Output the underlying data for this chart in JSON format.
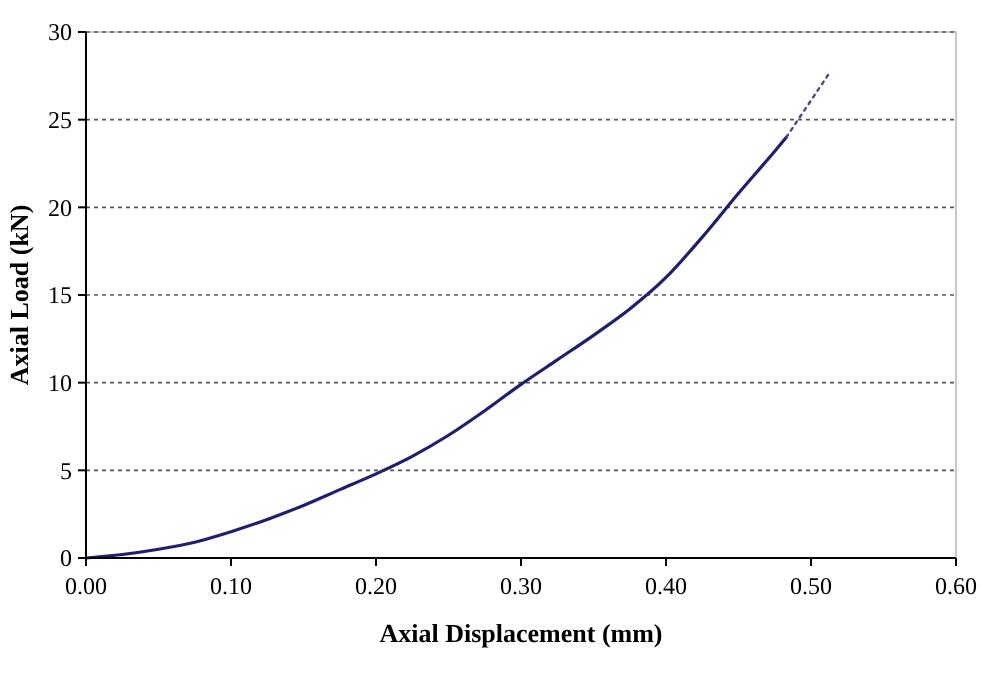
{
  "chart_data": {
    "type": "line",
    "xlabel": "Axial Displacement (mm)",
    "ylabel": "Axial Load (kN)",
    "xlim": [
      0,
      0.6
    ],
    "xticks": [
      {
        "value": 0,
        "label": "0.00"
      },
      {
        "value": 0.1,
        "label": "0.10"
      },
      {
        "value": 0.2,
        "label": "0.20"
      },
      {
        "value": 0.3,
        "label": "0.30"
      },
      {
        "value": 0.4,
        "label": "0.40"
      },
      {
        "value": 0.5,
        "label": "0.50"
      },
      {
        "value": 0.6,
        "label": "0.60"
      }
    ],
    "ylim": [
      0,
      30
    ],
    "yticks": [
      0,
      5,
      10,
      15,
      20,
      25,
      30
    ],
    "grid": "y",
    "series": [
      {
        "color": "#1f1f6e",
        "line_style": "solid",
        "x": [
          0,
          0.025,
          0.05,
          0.075,
          0.1,
          0.125,
          0.15,
          0.175,
          0.2,
          0.225,
          0.25,
          0.275,
          0.3,
          0.325,
          0.35,
          0.375,
          0.4,
          0.425,
          0.45,
          0.476,
          0.483
        ],
        "values": [
          0,
          0.2,
          0.5,
          0.9,
          1.5,
          2.2,
          3.0,
          3.9,
          4.8,
          5.8,
          7.0,
          8.4,
          9.9,
          11.3,
          12.7,
          14.2,
          16.0,
          18.3,
          20.8,
          23.3,
          24.0
        ]
      },
      {
        "color": "#4a4a7a",
        "line_style": "dotted",
        "x": [
          0.483,
          0.513
        ],
        "values": [
          24.0,
          27.7
        ]
      }
    ]
  }
}
